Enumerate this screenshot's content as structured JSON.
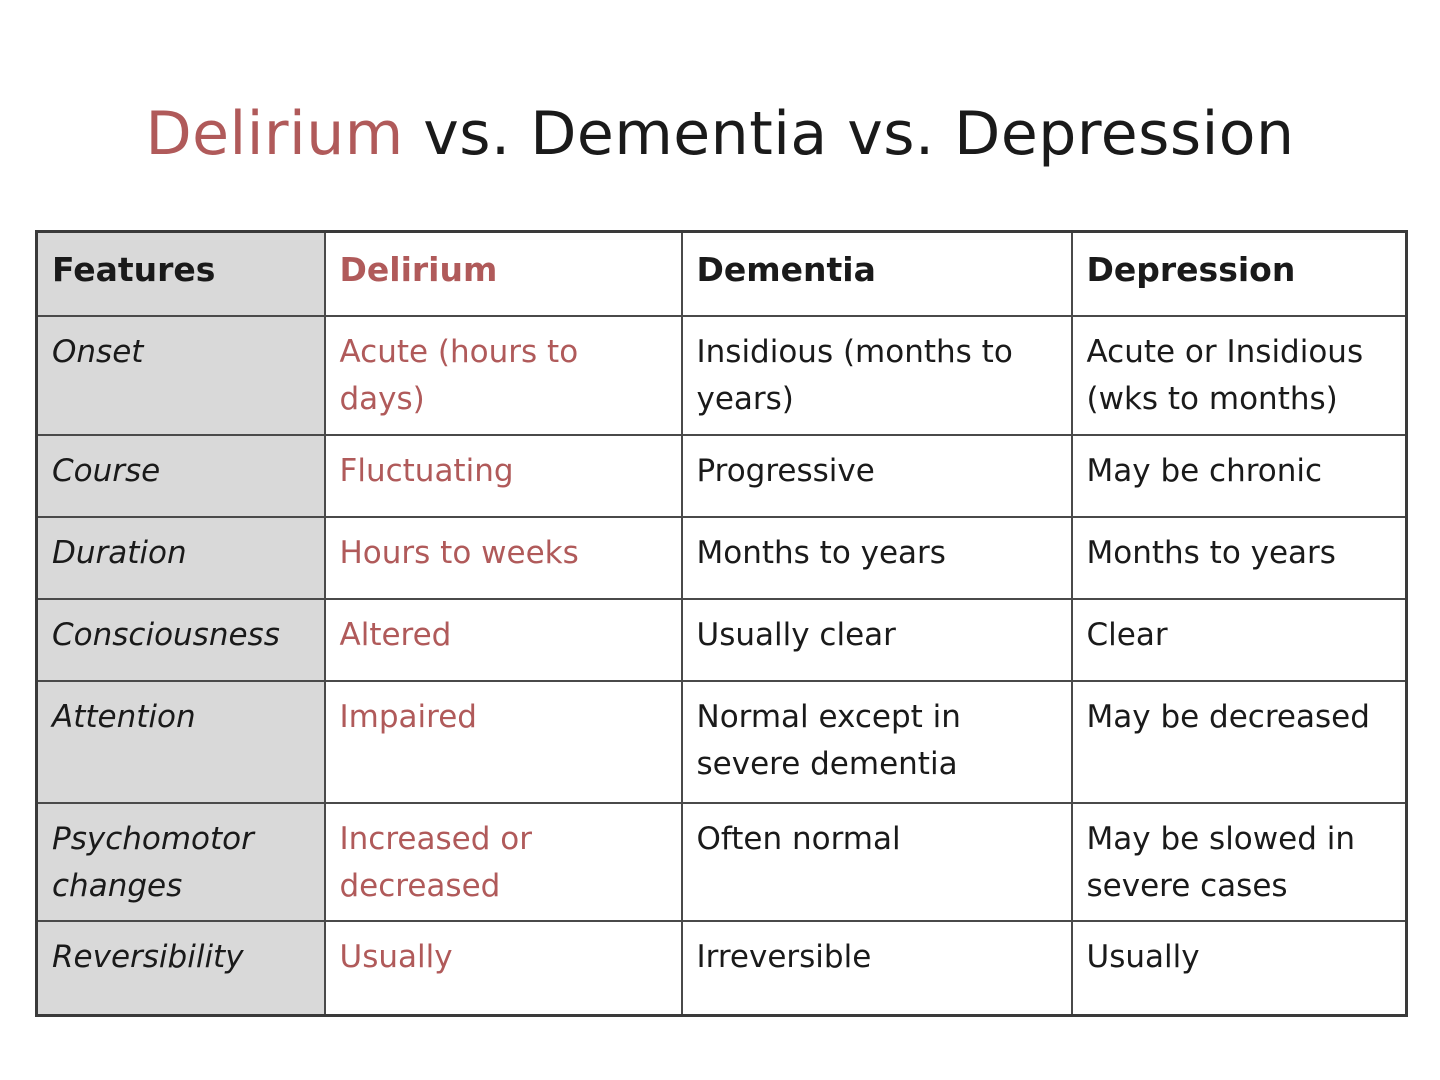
{
  "title": {
    "accent": "Delirium",
    "rest": " vs. Dementia vs. Depression"
  },
  "colors": {
    "accent": "#b05a5a",
    "feature_column_bg": "#d9d9d9",
    "text": "#1a1a1a",
    "border": "#3a3a3a"
  },
  "table": {
    "headers": [
      "Features",
      "Delirium",
      "Dementia",
      "Depression"
    ],
    "rows": [
      {
        "feature": "Onset",
        "delirium": "Acute (hours to days)",
        "dementia": "Insidious (months to years)",
        "depression": "Acute or Insidious (wks to months)"
      },
      {
        "feature": "Course",
        "delirium": "Fluctuating",
        "dementia": "Progressive",
        "depression": "May be chronic"
      },
      {
        "feature": "Duration",
        "delirium": "Hours to weeks",
        "dementia": "Months to years",
        "depression": "Months to years"
      },
      {
        "feature": "Consciousness",
        "delirium": "Altered",
        "dementia": "Usually clear",
        "depression": "Clear"
      },
      {
        "feature": "Attention",
        "delirium": "Impaired",
        "dementia": "Normal except in severe dementia",
        "depression": "May be decreased"
      },
      {
        "feature": "Psychomotor changes",
        "delirium": "Increased or decreased",
        "dementia": "Often normal",
        "depression": "May be slowed in severe cases"
      },
      {
        "feature": "Reversibility",
        "delirium": "Usually",
        "dementia": "Irreversible",
        "depression": "Usually"
      }
    ]
  }
}
